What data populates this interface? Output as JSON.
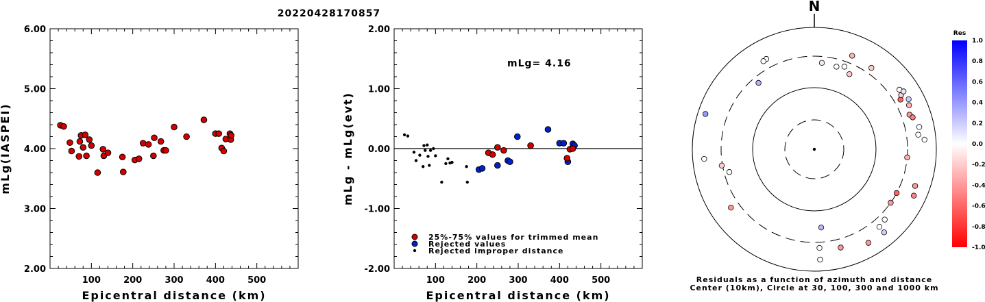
{
  "title": "20220428170857",
  "chart_data": [
    {
      "type": "scatter",
      "xlabel": "Epicentral distance (km)",
      "ylabel": "mLg(IASPEI)",
      "xlim": [
        0,
        600
      ],
      "ylim": [
        2,
        6
      ],
      "xticks": [
        "100",
        "200",
        "300",
        "400",
        "500"
      ],
      "yticks": [
        "2.00",
        "3.00",
        "4.00",
        "5.00",
        "6.00"
      ],
      "points": [
        [
          25,
          4.39
        ],
        [
          33,
          4.37
        ],
        [
          48,
          4.1
        ],
        [
          52,
          3.96
        ],
        [
          70,
          3.87
        ],
        [
          72,
          4.12
        ],
        [
          75,
          4.22
        ],
        [
          80,
          4.02
        ],
        [
          85,
          4.23
        ],
        [
          88,
          3.88
        ],
        [
          95,
          4.15
        ],
        [
          100,
          4.05
        ],
        [
          115,
          3.6
        ],
        [
          128,
          3.99
        ],
        [
          130,
          3.88
        ],
        [
          140,
          3.93
        ],
        [
          175,
          3.86
        ],
        [
          177,
          3.61
        ],
        [
          205,
          3.81
        ],
        [
          215,
          3.83
        ],
        [
          225,
          4.09
        ],
        [
          238,
          4.07
        ],
        [
          250,
          3.88
        ],
        [
          252,
          4.18
        ],
        [
          268,
          4.12
        ],
        [
          275,
          3.97
        ],
        [
          280,
          3.97
        ],
        [
          300,
          4.36
        ],
        [
          330,
          4.2
        ],
        [
          372,
          4.48
        ],
        [
          400,
          4.25
        ],
        [
          408,
          4.25
        ],
        [
          415,
          4.01
        ],
        [
          420,
          3.96
        ],
        [
          425,
          4.16
        ],
        [
          435,
          4.25
        ],
        [
          437,
          4.15
        ],
        [
          438,
          4.22
        ]
      ]
    },
    {
      "type": "scatter",
      "xlabel": "Epicentral distance (km)",
      "ylabel": "mLg - mLg(evt)",
      "xlim": [
        0,
        600
      ],
      "ylim": [
        -2,
        2
      ],
      "xticks": [
        "100",
        "200",
        "300",
        "400",
        "500"
      ],
      "yticks": [
        "-2.00",
        "-1.00",
        "0.00",
        "1.00",
        "2.00"
      ],
      "annotation": "mLg= 4.16",
      "legend": [
        {
          "label": "25%-75% values for trimmed mean",
          "color": "#d40000",
          "marker": "circle"
        },
        {
          "label": "Rejected values",
          "color": "#0022cc",
          "marker": "circle"
        },
        {
          "label": "Rejected improper distance",
          "color": "#000000",
          "marker": "dot"
        }
      ],
      "red": [
        [
          228,
          -0.07
        ],
        [
          238,
          -0.1
        ],
        [
          250,
          0.02
        ],
        [
          265,
          -0.03
        ],
        [
          330,
          0.05
        ],
        [
          418,
          -0.16
        ],
        [
          425,
          -0.01
        ],
        [
          432,
          0.0
        ]
      ],
      "blue": [
        [
          205,
          -0.35
        ],
        [
          213,
          -0.33
        ],
        [
          250,
          -0.28
        ],
        [
          275,
          -0.2
        ],
        [
          280,
          -0.22
        ],
        [
          298,
          0.2
        ],
        [
          372,
          0.32
        ],
        [
          400,
          0.09
        ],
        [
          410,
          0.09
        ],
        [
          420,
          -0.22
        ],
        [
          432,
          0.08
        ],
        [
          436,
          0.05
        ]
      ],
      "black": [
        [
          25,
          0.23
        ],
        [
          33,
          0.21
        ],
        [
          48,
          -0.06
        ],
        [
          53,
          -0.2
        ],
        [
          62,
          -0.11
        ],
        [
          70,
          -0.3
        ],
        [
          72,
          0.05
        ],
        [
          75,
          -0.03
        ],
        [
          80,
          0.06
        ],
        [
          82,
          -0.13
        ],
        [
          85,
          -0.28
        ],
        [
          88,
          -0.03
        ],
        [
          95,
          0.0
        ],
        [
          100,
          -0.12
        ],
        [
          115,
          -0.56
        ],
        [
          125,
          -0.25
        ],
        [
          130,
          -0.17
        ],
        [
          135,
          -0.24
        ],
        [
          140,
          -0.23
        ],
        [
          175,
          -0.3
        ],
        [
          177,
          -0.56
        ]
      ]
    },
    {
      "type": "polar-scatter",
      "north_label": "N",
      "caption": [
        "Residuals as a function of azimuth and distance",
        "Center (10km), Circle at 30, 100, 300 and 1000 km"
      ],
      "colorbar_title": "Res",
      "colorbar_ticks": [
        "1.0",
        "0.8",
        "0.6",
        "0.4",
        "0.2",
        "0.0",
        "-0.2",
        "-0.4",
        "-0.6",
        "-0.8",
        "-1.0"
      ],
      "points": [
        {
          "az": 332,
          "dist": 440,
          "res": 0.0
        },
        {
          "az": 330,
          "dist": 430,
          "res": 0.0
        },
        {
          "az": 22,
          "dist": 415,
          "res": -0.3
        },
        {
          "az": 35,
          "dist": 390,
          "res": -0.2
        },
        {
          "az": 5,
          "dist": 240,
          "res": -0.1
        },
        {
          "az": 15,
          "dist": 230,
          "res": 0.0
        },
        {
          "az": 20,
          "dist": 250,
          "res": 0.0
        },
        {
          "az": 25,
          "dist": 210,
          "res": -0.2
        },
        {
          "az": 60,
          "dist": 390,
          "res": -0.6
        },
        {
          "az": 58,
          "dist": 440,
          "res": -0.2
        },
        {
          "az": 55,
          "dist": 470,
          "res": 0.0
        },
        {
          "az": 57,
          "dist": 520,
          "res": 0.1
        },
        {
          "az": 62,
          "dist": 530,
          "res": 0.2
        },
        {
          "az": 65,
          "dist": 480,
          "res": -0.3
        },
        {
          "az": 70,
          "dist": 420,
          "res": -0.4
        },
        {
          "az": 72,
          "dist": 460,
          "res": -0.5
        },
        {
          "az": 78,
          "dist": 540,
          "res": 0.0
        },
        {
          "az": 82,
          "dist": 490,
          "res": 0.0
        },
        {
          "az": 85,
          "dist": 620,
          "res": 0.0
        },
        {
          "az": 95,
          "dist": 300,
          "res": -0.3
        },
        {
          "az": 118,
          "dist": 300,
          "res": -0.6
        },
        {
          "az": 125,
          "dist": 300,
          "res": -0.4
        },
        {
          "az": 110,
          "dist": 540,
          "res": -0.4
        },
        {
          "az": 115,
          "dist": 600,
          "res": -0.5
        },
        {
          "az": 135,
          "dist": 390,
          "res": 0.0
        },
        {
          "az": 140,
          "dist": 420,
          "res": 0.0
        },
        {
          "az": 140,
          "dist": 570,
          "res": 0.2
        },
        {
          "az": 150,
          "dist": 560,
          "res": -0.4
        },
        {
          "az": 165,
          "dist": 430,
          "res": -0.4
        },
        {
          "az": 177,
          "dist": 380,
          "res": 0.0
        },
        {
          "az": 177,
          "dist": 620,
          "res": 0.0
        },
        {
          "az": 175,
          "dist": 180,
          "res": 0.3
        },
        {
          "az": 255,
          "dist": 250,
          "res": 0.0
        },
        {
          "az": 235,
          "dist": 430,
          "res": -0.4
        },
        {
          "az": 260,
          "dist": 310,
          "res": -0.2
        },
        {
          "az": 265,
          "dist": 620,
          "res": 0.0
        },
        {
          "az": 288,
          "dist": 730,
          "res": 0.4
        },
        {
          "az": 320,
          "dist": 240,
          "res": 0.3
        }
      ]
    }
  ]
}
